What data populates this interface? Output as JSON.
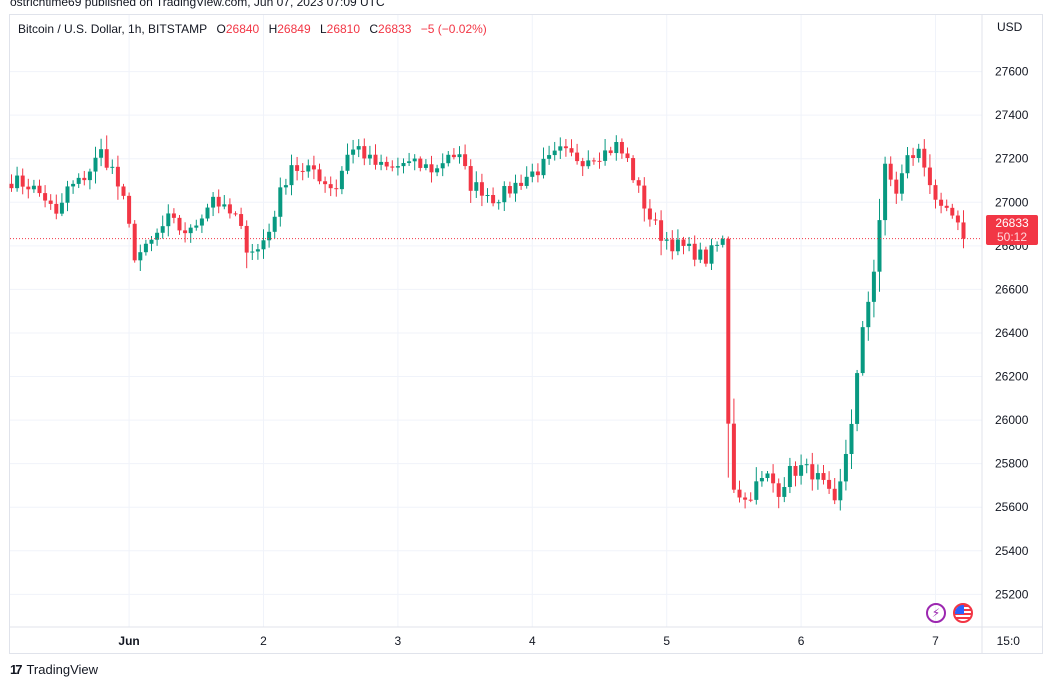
{
  "publisher": "ostrichtime69 published on TradingView.com, Jun 07, 2023 07:09 UTC",
  "legend": {
    "symbol": "Bitcoin / U.S. Dollar, 1h, BITSTAMP",
    "open_label": "O",
    "open": "26840",
    "high_label": "H",
    "high": "26849",
    "low_label": "L",
    "low": "26810",
    "close_label": "C",
    "close": "26833",
    "change": "−5 (−0.02%)"
  },
  "currency": "USD",
  "last_price": {
    "value": "26833",
    "countdown": "50:12"
  },
  "logo": {
    "text": "TradingView",
    "icon": "tradingview-logo-icon"
  },
  "controls": {
    "bolt_icon": "lightning-bolt-icon",
    "flag_icon": "us-flag-icon"
  },
  "colors": {
    "up": "#089981",
    "down": "#f23645",
    "grid": "#f0f3fa",
    "text": "#131722"
  },
  "chart_data": {
    "type": "candlestick",
    "interval": "1h",
    "ylim": [
      25050,
      27860
    ],
    "y_ticks": [
      25200,
      25400,
      25600,
      25800,
      26000,
      26200,
      26400,
      26600,
      26800,
      27000,
      27200,
      27400,
      27600
    ],
    "x_ticks": [
      {
        "label": "Jun",
        "index": 21
      },
      {
        "label": "2",
        "index": 45
      },
      {
        "label": "3",
        "index": 69
      },
      {
        "label": "4",
        "index": 93
      },
      {
        "label": "5",
        "index": 117
      },
      {
        "label": "6",
        "index": 141
      },
      {
        "label": "7",
        "index": 165
      },
      {
        "label": "15:0",
        "index": 178
      }
    ],
    "last_index": 170,
    "last_close": 26833,
    "anchors": [
      [
        0,
        27100
      ],
      [
        3,
        27080
      ],
      [
        6,
        27020
      ],
      [
        8,
        26930
      ],
      [
        10,
        27060
      ],
      [
        12,
        27090
      ],
      [
        14,
        27150
      ],
      [
        16,
        27230
      ],
      [
        18,
        27150
      ],
      [
        20,
        27000
      ],
      [
        22,
        26760
      ],
      [
        24,
        26780
      ],
      [
        26,
        26850
      ],
      [
        28,
        26920
      ],
      [
        30,
        26880
      ],
      [
        32,
        26860
      ],
      [
        34,
        26950
      ],
      [
        36,
        27030
      ],
      [
        38,
        26960
      ],
      [
        40,
        26930
      ],
      [
        42,
        26800
      ],
      [
        44,
        26780
      ],
      [
        46,
        26870
      ],
      [
        48,
        27040
      ],
      [
        50,
        27180
      ],
      [
        52,
        27130
      ],
      [
        54,
        27150
      ],
      [
        56,
        27090
      ],
      [
        58,
        27070
      ],
      [
        60,
        27230
      ],
      [
        62,
        27250
      ],
      [
        64,
        27190
      ],
      [
        66,
        27160
      ],
      [
        68,
        27150
      ],
      [
        70,
        27180
      ],
      [
        72,
        27170
      ],
      [
        74,
        27160
      ],
      [
        76,
        27150
      ],
      [
        78,
        27230
      ],
      [
        80,
        27200
      ],
      [
        82,
        27080
      ],
      [
        84,
        27060
      ],
      [
        86,
        27020
      ],
      [
        88,
        27040
      ],
      [
        90,
        27080
      ],
      [
        92,
        27120
      ],
      [
        94,
        27150
      ],
      [
        96,
        27190
      ],
      [
        98,
        27230
      ],
      [
        100,
        27210
      ],
      [
        102,
        27200
      ],
      [
        104,
        27220
      ],
      [
        106,
        27230
      ],
      [
        108,
        27260
      ],
      [
        110,
        27190
      ],
      [
        112,
        27050
      ],
      [
        114,
        26930
      ],
      [
        116,
        26850
      ],
      [
        118,
        26810
      ],
      [
        120,
        26790
      ],
      [
        122,
        26770
      ],
      [
        124,
        26740
      ],
      [
        126,
        26800
      ],
      [
        127,
        26820
      ],
      [
        128,
        26000
      ],
      [
        129,
        25700
      ],
      [
        131,
        25630
      ],
      [
        133,
        25700
      ],
      [
        135,
        25740
      ],
      [
        137,
        25680
      ],
      [
        139,
        25760
      ],
      [
        141,
        25780
      ],
      [
        143,
        25760
      ],
      [
        145,
        25700
      ],
      [
        147,
        25600
      ],
      [
        148,
        25700
      ],
      [
        150,
        26000
      ],
      [
        152,
        26400
      ],
      [
        154,
        26700
      ],
      [
        156,
        27150
      ],
      [
        158,
        27050
      ],
      [
        160,
        27200
      ],
      [
        162,
        27230
      ],
      [
        164,
        27100
      ],
      [
        166,
        26950
      ],
      [
        168,
        26930
      ],
      [
        170,
        26833
      ]
    ]
  }
}
